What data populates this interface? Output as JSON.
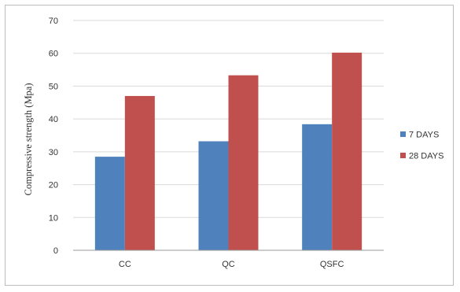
{
  "chart_data": {
    "type": "bar",
    "categories": [
      "CC",
      "QC",
      "QSFC"
    ],
    "series": [
      {
        "name": "7 DAYS",
        "values": [
          28.5,
          33.2,
          38.4
        ],
        "color": "#4f81bd"
      },
      {
        "name": "28 DAYS",
        "values": [
          47.0,
          53.3,
          60.2
        ],
        "color": "#c0504d"
      }
    ],
    "xlabel": "",
    "ylabel": "Compressive strength (Mpa)",
    "ylim": [
      0,
      70
    ],
    "yticks": [
      0,
      10,
      20,
      30,
      40,
      50,
      60,
      70
    ],
    "grid": true,
    "legend_position": "right"
  }
}
